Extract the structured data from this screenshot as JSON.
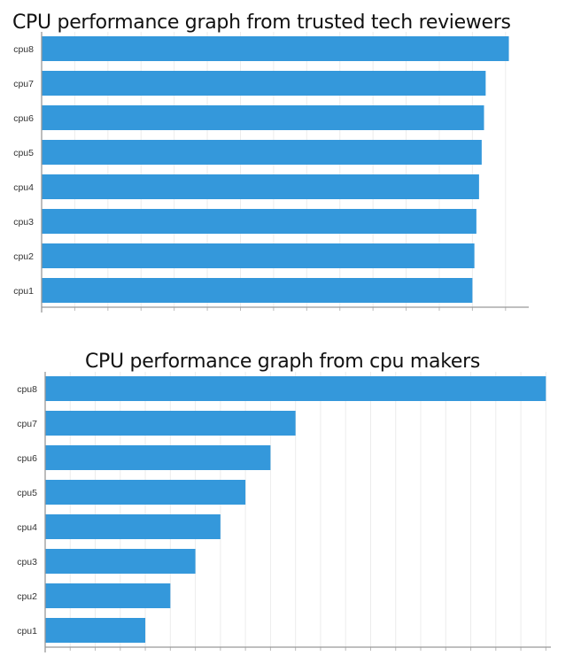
{
  "chart_data": [
    {
      "type": "bar",
      "orientation": "horizontal",
      "title": "CPU performance graph from trusted tech reviewers",
      "categories": [
        "cpu8",
        "cpu7",
        "cpu6",
        "cpu5",
        "cpu4",
        "cpu3",
        "cpu2",
        "cpu1"
      ],
      "values": [
        14.1,
        13.4,
        13.35,
        13.28,
        13.2,
        13.12,
        13.06,
        13.0
      ],
      "xlim": [
        0,
        14.7
      ],
      "grid_step": 1,
      "xlabel": "",
      "ylabel": "",
      "grid": true,
      "bar_color": "#3498db"
    },
    {
      "type": "bar",
      "orientation": "horizontal",
      "title": "CPU performance graph from cpu makers",
      "categories": [
        "cpu8",
        "cpu7",
        "cpu6",
        "cpu5",
        "cpu4",
        "cpu3",
        "cpu2",
        "cpu1"
      ],
      "values": [
        10,
        5,
        4.5,
        4,
        3.5,
        3,
        2.5,
        2
      ],
      "xlim": [
        0,
        10.1
      ],
      "grid_step": 0.5,
      "xlabel": "",
      "ylabel": "",
      "grid": true,
      "bar_color": "#3498db"
    }
  ]
}
